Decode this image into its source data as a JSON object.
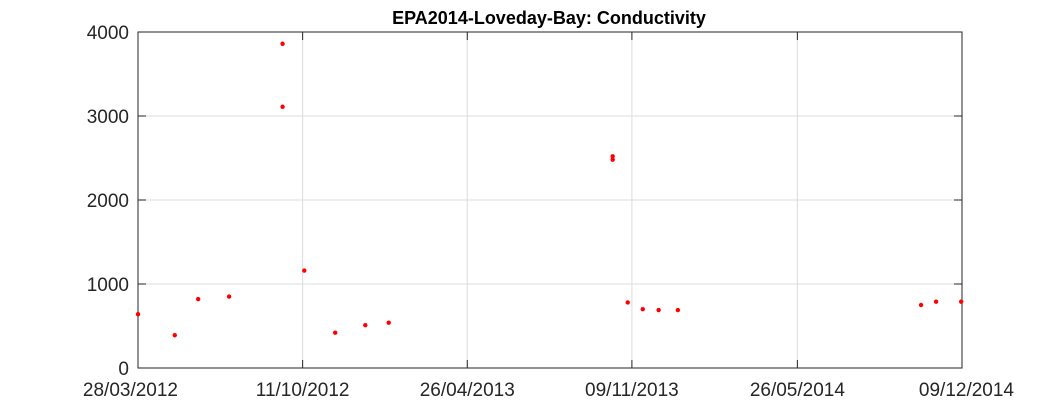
{
  "chart_data": {
    "type": "scatter",
    "title": "EPA2014-Loveday-Bay: Conductivity",
    "xlabel": "",
    "ylabel": "",
    "xlim": [
      "2012-03-28",
      "2014-12-09"
    ],
    "ylim": [
      0,
      4000
    ],
    "x_ticks": [
      "2012-03-28",
      "2012-10-11",
      "2013-04-26",
      "2013-11-09",
      "2014-05-26",
      "2014-12-09"
    ],
    "x_tick_labels": [
      "28/03/2012",
      "11/10/2012",
      "26/04/2013",
      "09/11/2013",
      "26/05/2014",
      "09/12/2014"
    ],
    "y_ticks": [
      0,
      1000,
      2000,
      3000,
      4000
    ],
    "y_tick_labels": [
      "0",
      "1000",
      "2000",
      "3000",
      "4000"
    ],
    "grid": true,
    "marker_color": "#ff0000",
    "series": [
      {
        "points": [
          {
            "x": "2012-03-28",
            "y": 640
          },
          {
            "x": "2012-05-11",
            "y": 390
          },
          {
            "x": "2012-06-08",
            "y": 820
          },
          {
            "x": "2012-07-15",
            "y": 850
          },
          {
            "x": "2012-09-17",
            "y": 3860
          },
          {
            "x": "2012-09-17",
            "y": 3110
          },
          {
            "x": "2012-10-13",
            "y": 1160
          },
          {
            "x": "2012-11-19",
            "y": 420
          },
          {
            "x": "2012-12-25",
            "y": 510
          },
          {
            "x": "2013-01-22",
            "y": 540
          },
          {
            "x": "2013-10-17",
            "y": 2520
          },
          {
            "x": "2013-10-17",
            "y": 2480
          },
          {
            "x": "2013-11-04",
            "y": 780
          },
          {
            "x": "2013-11-22",
            "y": 700
          },
          {
            "x": "2013-12-11",
            "y": 690
          },
          {
            "x": "2014-01-03",
            "y": 690
          },
          {
            "x": "2014-10-21",
            "y": 750
          },
          {
            "x": "2014-11-08",
            "y": 790
          },
          {
            "x": "2014-12-08",
            "y": 790
          }
        ]
      }
    ]
  }
}
